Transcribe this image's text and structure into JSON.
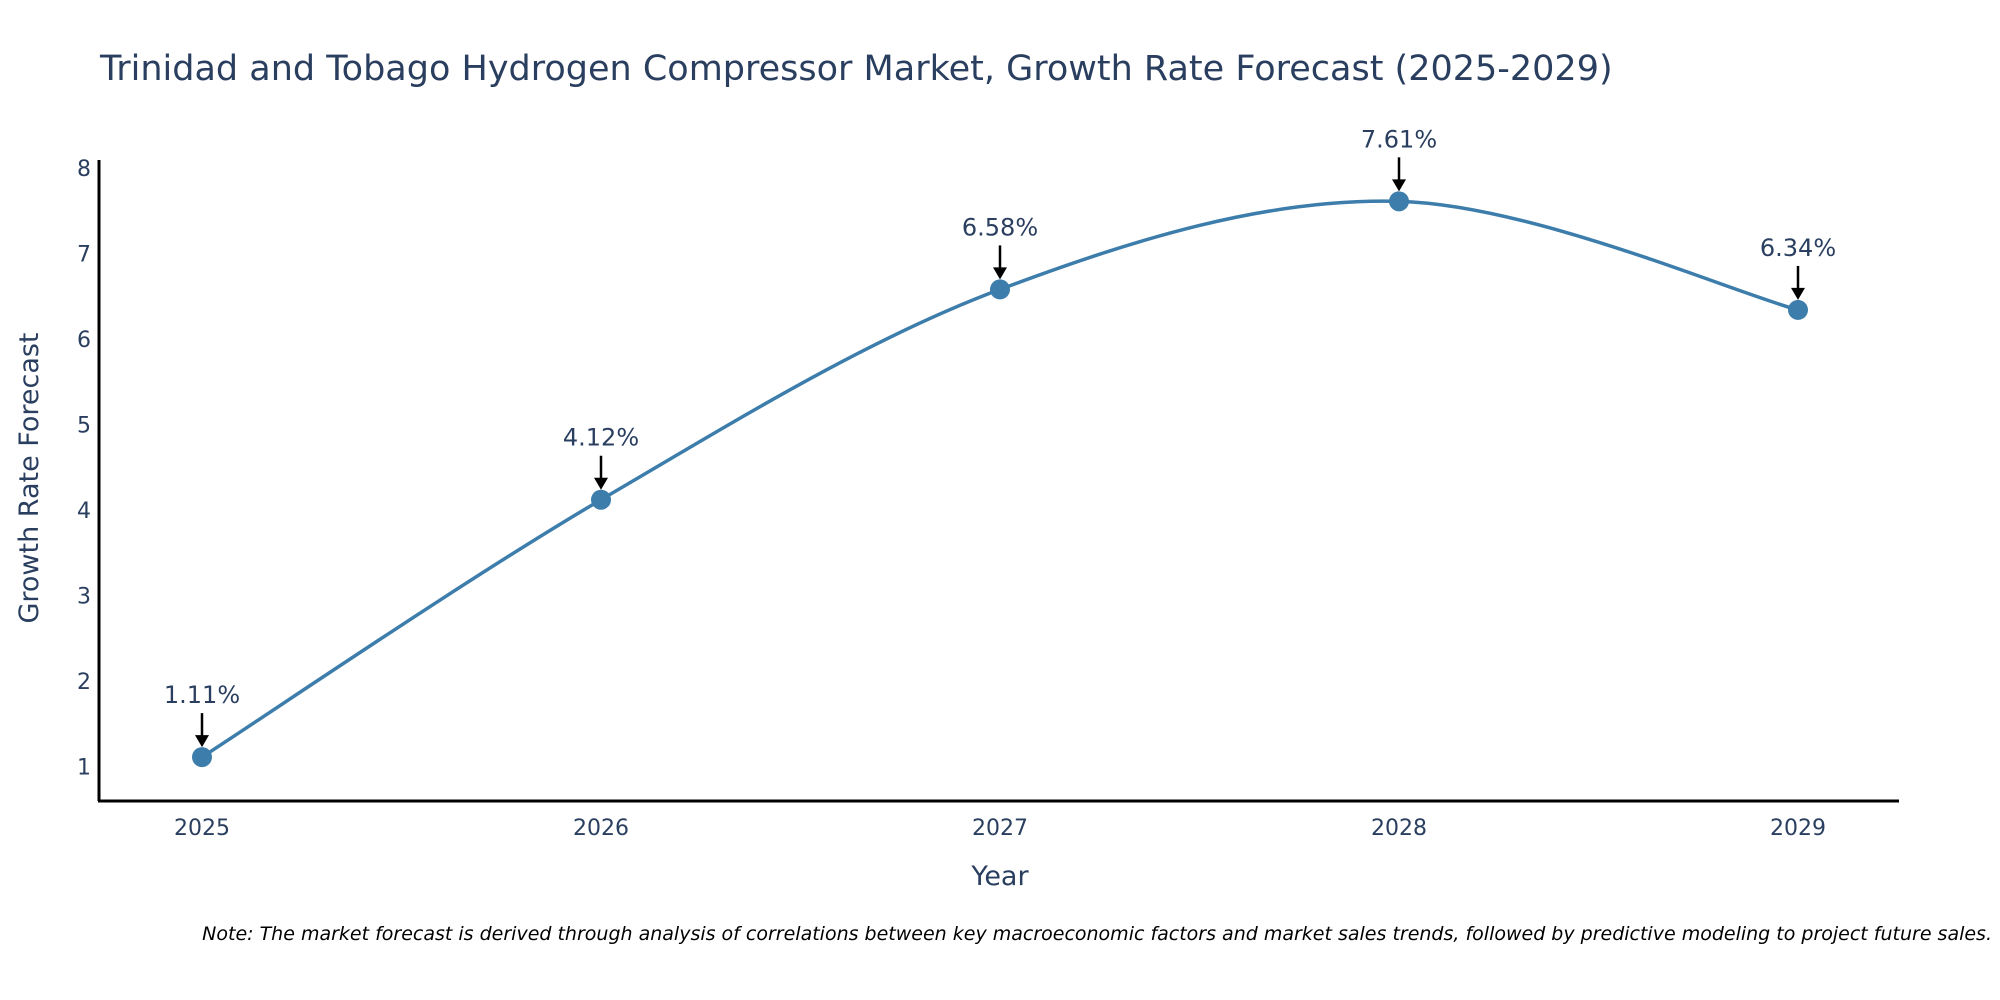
{
  "chart_data": {
    "type": "line",
    "title": "Trinidad and Tobago Hydrogen Compressor Market, Growth Rate Forecast (2025-2029)",
    "xlabel": "Year",
    "ylabel": "Growth Rate Forecast",
    "categories": [
      "2025",
      "2026",
      "2027",
      "2028",
      "2029"
    ],
    "series": [
      {
        "name": "Growth Rate Forecast",
        "values": [
          1.11,
          4.12,
          6.58,
          7.61,
          6.34
        ],
        "color": "#3d7dab"
      }
    ],
    "data_labels": [
      "1.11%",
      "4.12%",
      "6.58%",
      "7.61%",
      "6.34%"
    ],
    "yticks": [
      "1",
      "2",
      "3",
      "4",
      "5",
      "6",
      "7",
      "8"
    ],
    "ylim": [
      0.6,
      8.1
    ],
    "line_shape": "spline",
    "grid": false,
    "note": "Note: The market forecast is derived through analysis of correlations between key macroeconomic factors and market sales trends, followed by predictive modeling to project future sales."
  },
  "colors": {
    "line": "#3d7dab",
    "marker": "#3d7dab",
    "text": "#2a3f5f",
    "axis": "#000000",
    "arrow": "#000000"
  }
}
